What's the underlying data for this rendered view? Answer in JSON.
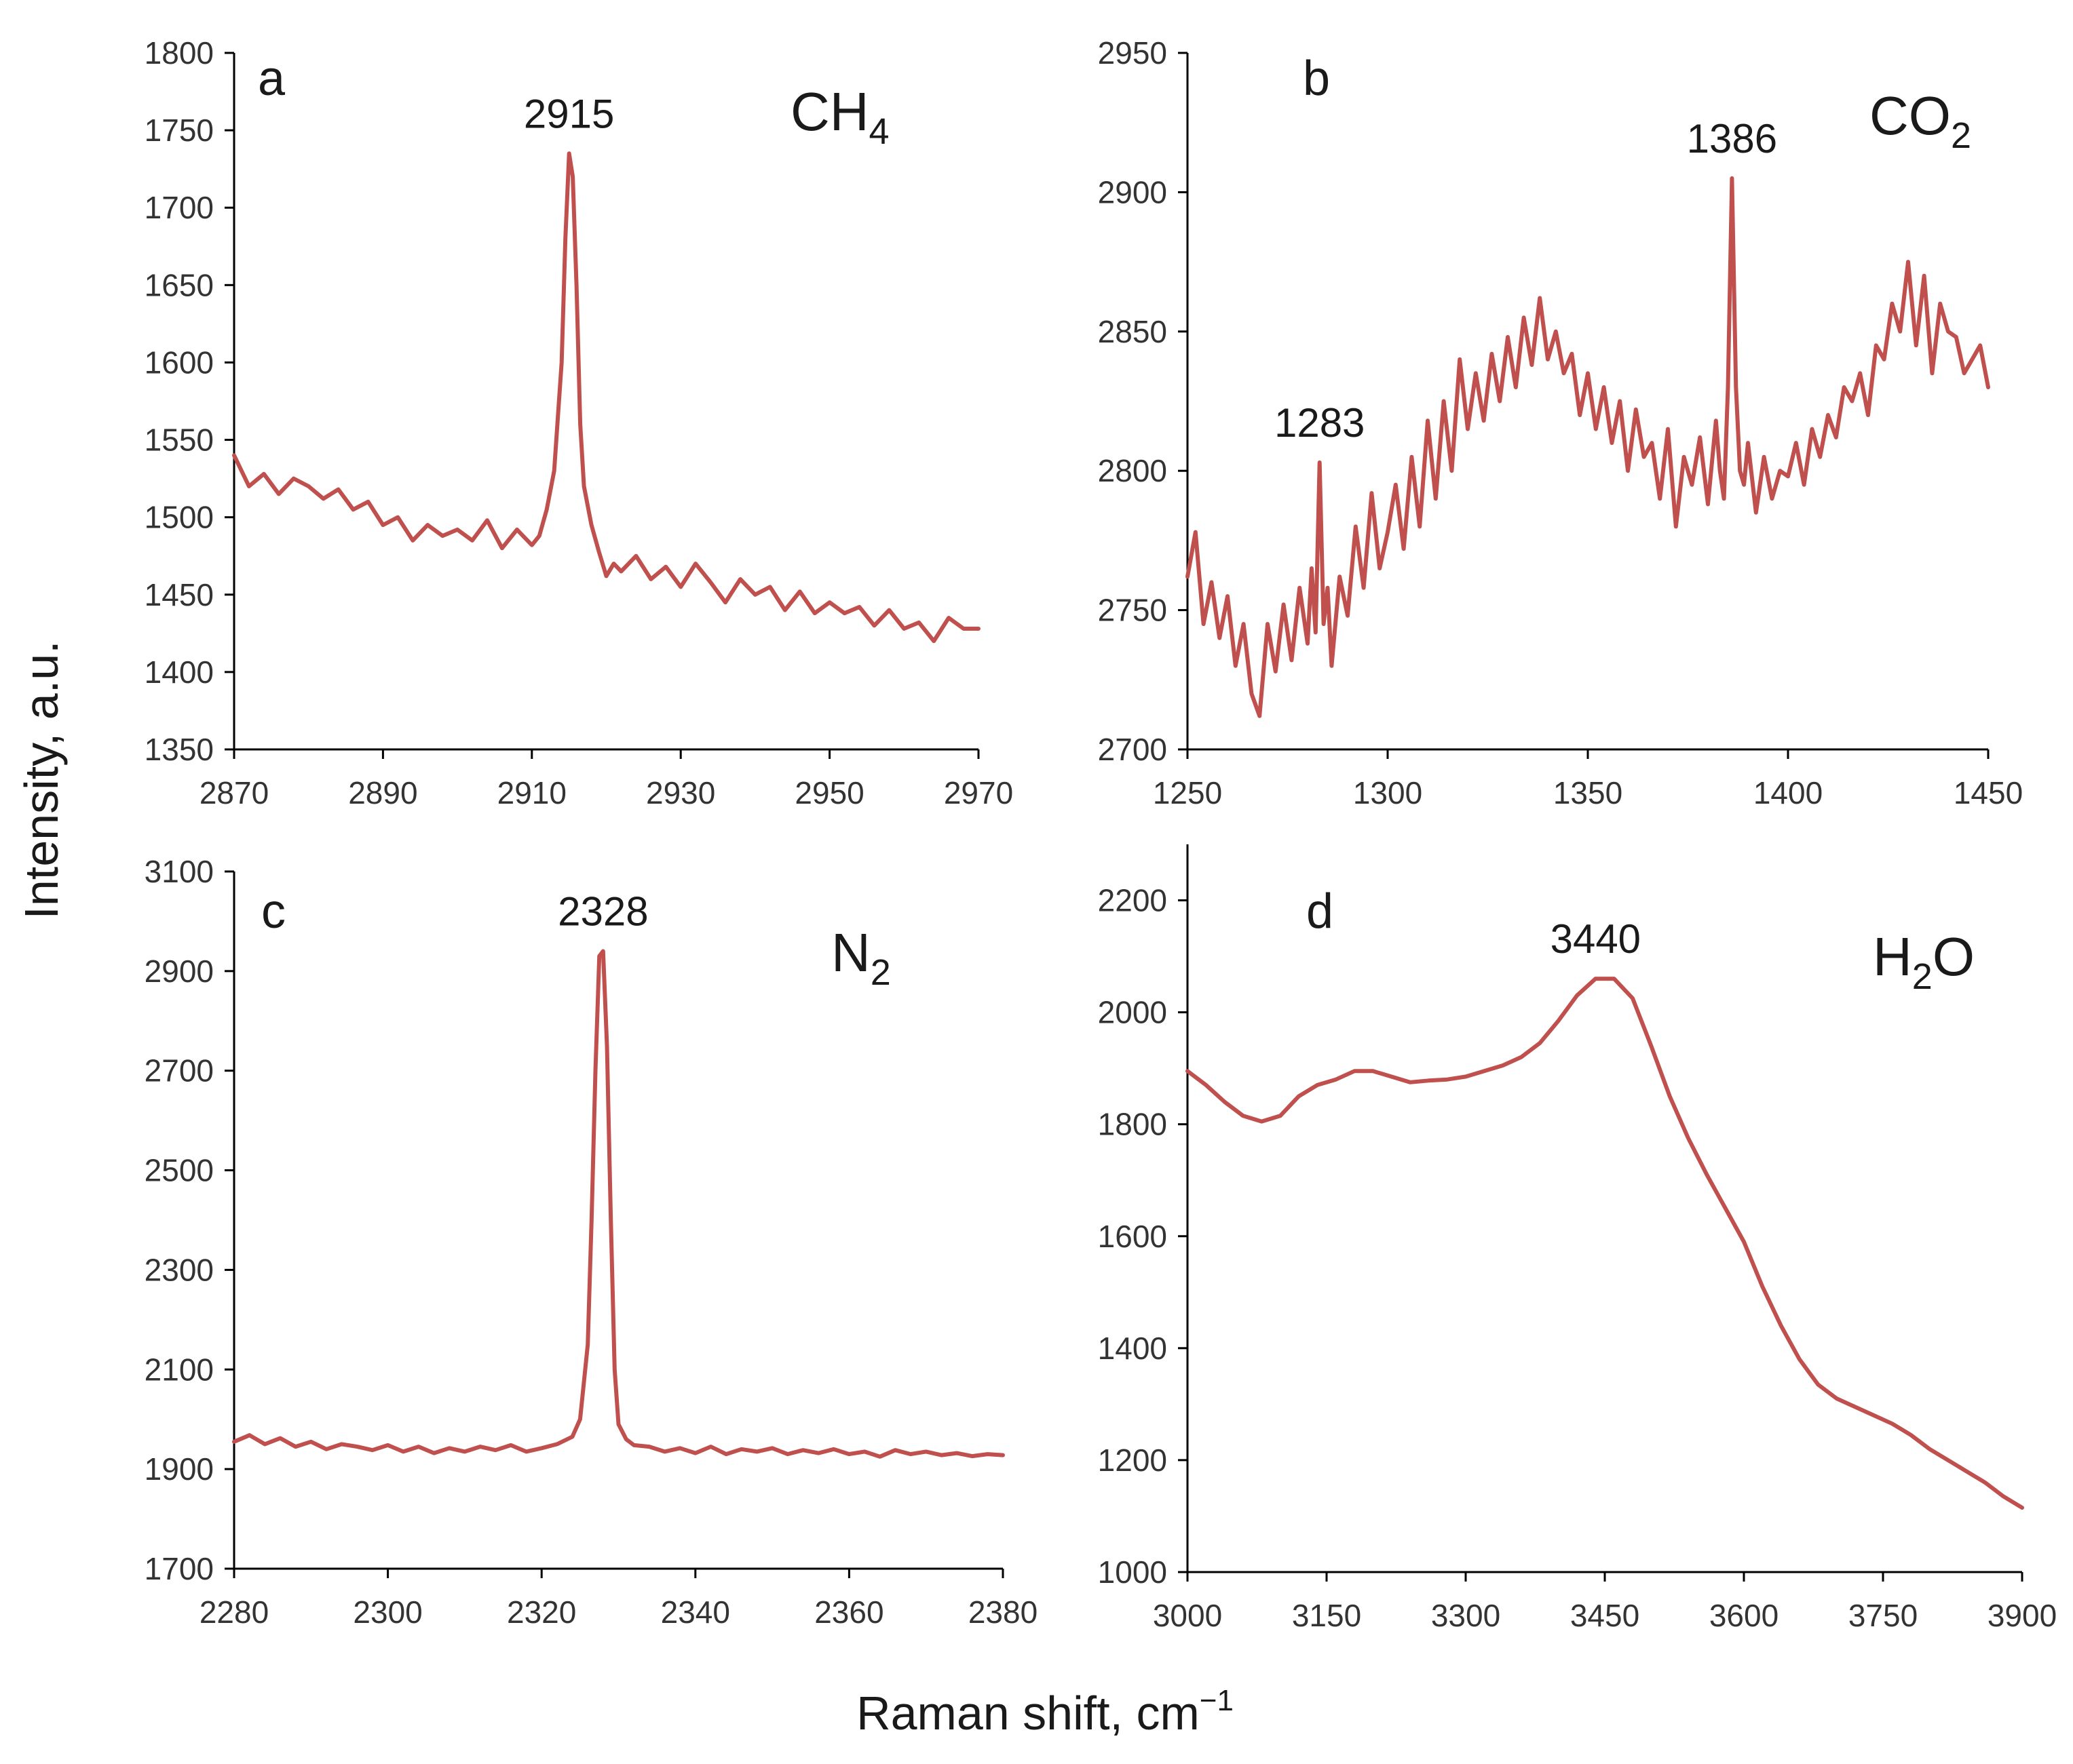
{
  "figure": {
    "ylabel": "Intensity, a.u.",
    "xlabel_base": "Raman shift, cm",
    "xlabel_sup": "−1",
    "line_color": "#c0504d"
  },
  "chart_data": [
    {
      "type": "line",
      "id": "a",
      "panel_letter": "a",
      "species_main": "CH",
      "species_sub": "4",
      "species_tail": "",
      "xlim": [
        2870,
        2970
      ],
      "ylim": [
        1350,
        1800
      ],
      "xticks": [
        2870,
        2890,
        2910,
        2930,
        2950,
        2970
      ],
      "yticks": [
        1350,
        1400,
        1450,
        1500,
        1550,
        1600,
        1650,
        1700,
        1750,
        1800
      ],
      "x_axis_at_bottom": true,
      "peaks": [
        {
          "x": 2915,
          "label": "2915"
        }
      ],
      "series": [
        {
          "name": "CH4",
          "x": [
            2870,
            2872,
            2874,
            2876,
            2878,
            2880,
            2882,
            2884,
            2886,
            2888,
            2890,
            2892,
            2894,
            2896,
            2898,
            2900,
            2902,
            2904,
            2906,
            2908,
            2910,
            2911,
            2912,
            2913,
            2914,
            2914.5,
            2915,
            2915.5,
            2916,
            2916.5,
            2917,
            2918,
            2919,
            2920,
            2921,
            2922,
            2924,
            2926,
            2928,
            2930,
            2932,
            2934,
            2936,
            2938,
            2940,
            2942,
            2944,
            2946,
            2948,
            2950,
            2952,
            2954,
            2956,
            2958,
            2960,
            2962,
            2964,
            2966,
            2968,
            2970
          ],
          "y": [
            1540,
            1520,
            1528,
            1515,
            1525,
            1520,
            1512,
            1518,
            1505,
            1510,
            1495,
            1500,
            1485,
            1495,
            1488,
            1492,
            1485,
            1498,
            1480,
            1492,
            1482,
            1488,
            1505,
            1530,
            1600,
            1680,
            1735,
            1720,
            1650,
            1560,
            1520,
            1495,
            1478,
            1462,
            1470,
            1465,
            1475,
            1460,
            1468,
            1455,
            1470,
            1458,
            1445,
            1460,
            1450,
            1455,
            1440,
            1452,
            1438,
            1445,
            1438,
            1442,
            1430,
            1440,
            1428,
            1432,
            1420,
            1435,
            1428,
            1428
          ]
        }
      ]
    },
    {
      "type": "line",
      "id": "b",
      "panel_letter": "b",
      "species_main": "CO",
      "species_sub": "2",
      "species_tail": "",
      "xlim": [
        1250,
        1450
      ],
      "ylim": [
        2700,
        2950
      ],
      "xticks": [
        1250,
        1300,
        1350,
        1400,
        1450
      ],
      "yticks": [
        2700,
        2750,
        2800,
        2850,
        2900,
        2950
      ],
      "x_axis_at_bottom": true,
      "peaks": [
        {
          "x": 1283,
          "label": "1283"
        },
        {
          "x": 1386,
          "label": "1386"
        }
      ],
      "series": [
        {
          "name": "CO2",
          "x": [
            1250,
            1252,
            1254,
            1256,
            1258,
            1260,
            1262,
            1264,
            1266,
            1268,
            1270,
            1272,
            1274,
            1276,
            1278,
            1280,
            1281,
            1282,
            1283,
            1284,
            1285,
            1286,
            1288,
            1290,
            1292,
            1294,
            1296,
            1298,
            1300,
            1302,
            1304,
            1306,
            1308,
            1310,
            1312,
            1314,
            1316,
            1318,
            1320,
            1322,
            1324,
            1326,
            1328,
            1330,
            1332,
            1334,
            1336,
            1338,
            1340,
            1342,
            1344,
            1346,
            1348,
            1350,
            1352,
            1354,
            1356,
            1358,
            1360,
            1362,
            1364,
            1366,
            1368,
            1370,
            1372,
            1374,
            1376,
            1378,
            1380,
            1382,
            1383,
            1384,
            1385,
            1386,
            1387,
            1388,
            1389,
            1390,
            1392,
            1394,
            1396,
            1398,
            1400,
            1402,
            1404,
            1406,
            1408,
            1410,
            1412,
            1414,
            1416,
            1418,
            1420,
            1422,
            1424,
            1426,
            1428,
            1430,
            1432,
            1434,
            1436,
            1438,
            1440,
            1442,
            1444,
            1446,
            1448,
            1450
          ],
          "y": [
            2762,
            2778,
            2745,
            2760,
            2740,
            2755,
            2730,
            2745,
            2720,
            2712,
            2745,
            2728,
            2752,
            2732,
            2758,
            2738,
            2765,
            2742,
            2803,
            2745,
            2758,
            2730,
            2762,
            2748,
            2780,
            2758,
            2792,
            2765,
            2778,
            2795,
            2772,
            2805,
            2780,
            2818,
            2790,
            2825,
            2800,
            2840,
            2815,
            2835,
            2818,
            2842,
            2825,
            2848,
            2830,
            2855,
            2838,
            2862,
            2840,
            2850,
            2835,
            2842,
            2820,
            2835,
            2815,
            2830,
            2810,
            2825,
            2800,
            2822,
            2805,
            2810,
            2790,
            2815,
            2780,
            2805,
            2795,
            2812,
            2788,
            2818,
            2800,
            2790,
            2830,
            2905,
            2830,
            2800,
            2795,
            2810,
            2785,
            2805,
            2790,
            2800,
            2798,
            2810,
            2795,
            2815,
            2805,
            2820,
            2812,
            2830,
            2825,
            2835,
            2820,
            2845,
            2840,
            2860,
            2850,
            2875,
            2845,
            2870,
            2835,
            2860,
            2850,
            2848,
            2835,
            2840,
            2845,
            2830
          ]
        }
      ]
    },
    {
      "type": "line",
      "id": "c",
      "panel_letter": "c",
      "species_main": "N",
      "species_sub": "2",
      "species_tail": "",
      "xlim": [
        2280,
        2380
      ],
      "ylim": [
        1700,
        3100
      ],
      "xticks": [
        2280,
        2300,
        2320,
        2340,
        2360,
        2380
      ],
      "yticks": [
        1700,
        1900,
        2100,
        2300,
        2500,
        2700,
        2900,
        3100
      ],
      "x_axis_at_bottom": true,
      "peaks": [
        {
          "x": 2328,
          "label": "2328"
        }
      ],
      "series": [
        {
          "name": "N2",
          "x": [
            2280,
            2282,
            2284,
            2286,
            2288,
            2290,
            2292,
            2294,
            2296,
            2298,
            2300,
            2302,
            2304,
            2306,
            2308,
            2310,
            2312,
            2314,
            2316,
            2318,
            2320,
            2322,
            2324,
            2325,
            2326,
            2326.5,
            2327,
            2327.5,
            2328,
            2328.5,
            2329,
            2329.5,
            2330,
            2331,
            2332,
            2334,
            2336,
            2338,
            2340,
            2342,
            2344,
            2346,
            2348,
            2350,
            2352,
            2354,
            2356,
            2358,
            2360,
            2362,
            2364,
            2366,
            2368,
            2370,
            2372,
            2374,
            2376,
            2378,
            2380
          ],
          "y": [
            1955,
            1968,
            1950,
            1962,
            1945,
            1955,
            1940,
            1950,
            1945,
            1938,
            1948,
            1935,
            1945,
            1932,
            1942,
            1935,
            1945,
            1938,
            1948,
            1935,
            1942,
            1950,
            1965,
            2000,
            2150,
            2400,
            2700,
            2930,
            2940,
            2750,
            2400,
            2100,
            1990,
            1960,
            1948,
            1945,
            1935,
            1942,
            1932,
            1945,
            1930,
            1940,
            1935,
            1942,
            1930,
            1938,
            1932,
            1940,
            1930,
            1935,
            1925,
            1938,
            1930,
            1935,
            1928,
            1932,
            1926,
            1930,
            1928
          ]
        }
      ]
    },
    {
      "type": "line",
      "id": "d",
      "panel_letter": "d",
      "species_main": "H",
      "species_sub": "2",
      "species_tail": "O",
      "xlim": [
        3000,
        3900
      ],
      "ylim": [
        1000,
        2300
      ],
      "xticks": [
        3000,
        3150,
        3300,
        3450,
        3600,
        3750,
        3900
      ],
      "yticks": [
        1000,
        1200,
        1400,
        1600,
        1800,
        2000,
        2200
      ],
      "x_axis_at_bottom": true,
      "peaks": [
        {
          "x": 3440,
          "label": "3440"
        }
      ],
      "series": [
        {
          "name": "H2O",
          "x": [
            3000,
            3020,
            3040,
            3060,
            3080,
            3100,
            3120,
            3140,
            3160,
            3180,
            3200,
            3220,
            3240,
            3260,
            3280,
            3300,
            3320,
            3340,
            3360,
            3380,
            3400,
            3420,
            3440,
            3460,
            3480,
            3500,
            3520,
            3540,
            3560,
            3580,
            3600,
            3620,
            3640,
            3660,
            3680,
            3700,
            3720,
            3740,
            3760,
            3780,
            3800,
            3820,
            3840,
            3860,
            3880,
            3900
          ],
          "y": [
            1895,
            1870,
            1840,
            1815,
            1805,
            1815,
            1850,
            1870,
            1880,
            1895,
            1895,
            1885,
            1875,
            1878,
            1880,
            1885,
            1895,
            1905,
            1920,
            1945,
            1985,
            2030,
            2060,
            2060,
            2025,
            1940,
            1850,
            1775,
            1710,
            1650,
            1590,
            1510,
            1440,
            1380,
            1335,
            1310,
            1295,
            1280,
            1265,
            1245,
            1220,
            1200,
            1180,
            1160,
            1135,
            1115
          ]
        }
      ]
    }
  ]
}
